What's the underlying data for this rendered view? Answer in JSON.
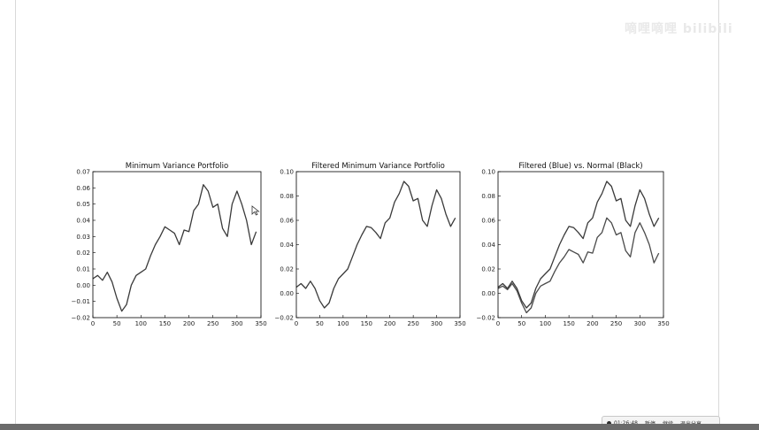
{
  "watermark": "嘀哩嘀哩 bilibili",
  "status_bar": {
    "time": "01:26:48",
    "buttons": [
      "暂停",
      "继续",
      "退出分享"
    ]
  },
  "colors": {
    "line_dark": "#3a3a3a",
    "line_mid": "#7a7a7a",
    "axis": "#000000",
    "background": "#ffffff"
  },
  "icons": [
    "cursor-arrow-icon",
    "record-dot-icon"
  ],
  "chart_data": [
    {
      "type": "line",
      "title": "Minimum Variance Portfolio",
      "xlabel": "",
      "ylabel": "",
      "xlim": [
        0,
        350
      ],
      "ylim": [
        -0.02,
        0.07
      ],
      "xticks": [
        "0",
        "50",
        "100",
        "150",
        "200",
        "250",
        "300",
        "350"
      ],
      "yticks": [
        "−0.02",
        "−0.01",
        "0.00",
        "0.01",
        "0.02",
        "0.03",
        "0.04",
        "0.05",
        "0.06",
        "0.07"
      ],
      "grid": false,
      "series": [
        {
          "color": "#3a3a3a",
          "x": [
            0,
            10,
            20,
            30,
            40,
            50,
            60,
            70,
            80,
            90,
            100,
            110,
            120,
            130,
            140,
            150,
            160,
            170,
            180,
            190,
            200,
            210,
            220,
            230,
            240,
            250,
            260,
            270,
            280,
            290,
            300,
            310,
            320,
            330,
            340
          ],
          "y": [
            0.004,
            0.006,
            0.003,
            0.008,
            0.002,
            -0.008,
            -0.016,
            -0.012,
            0.0,
            0.006,
            0.008,
            0.01,
            0.018,
            0.025,
            0.03,
            0.036,
            0.034,
            0.032,
            0.025,
            0.034,
            0.033,
            0.046,
            0.05,
            0.062,
            0.058,
            0.048,
            0.05,
            0.035,
            0.03,
            0.05,
            0.058,
            0.05,
            0.04,
            0.025,
            0.033
          ]
        }
      ]
    },
    {
      "type": "line",
      "title": "Filtered Minimum Variance Portfolio",
      "xlabel": "",
      "ylabel": "",
      "xlim": [
        0,
        350
      ],
      "ylim": [
        -0.02,
        0.1
      ],
      "xticks": [
        "0",
        "50",
        "100",
        "150",
        "200",
        "250",
        "300",
        "350"
      ],
      "yticks": [
        "−0.02",
        "0.00",
        "0.02",
        "0.04",
        "0.06",
        "0.08",
        "0.10"
      ],
      "grid": false,
      "series": [
        {
          "color": "#3a3a3a",
          "x": [
            0,
            10,
            20,
            30,
            40,
            50,
            60,
            70,
            80,
            90,
            100,
            110,
            120,
            130,
            140,
            150,
            160,
            170,
            180,
            190,
            200,
            210,
            220,
            230,
            240,
            250,
            260,
            270,
            280,
            290,
            300,
            310,
            320,
            330,
            340
          ],
          "y": [
            0.005,
            0.008,
            0.004,
            0.01,
            0.004,
            -0.006,
            -0.012,
            -0.008,
            0.004,
            0.012,
            0.016,
            0.02,
            0.03,
            0.04,
            0.048,
            0.055,
            0.054,
            0.05,
            0.045,
            0.058,
            0.062,
            0.075,
            0.082,
            0.092,
            0.088,
            0.076,
            0.078,
            0.06,
            0.055,
            0.072,
            0.085,
            0.078,
            0.065,
            0.055,
            0.062
          ]
        }
      ]
    },
    {
      "type": "line",
      "title": "Filtered (Blue) vs. Normal (Black)",
      "xlabel": "",
      "ylabel": "",
      "xlim": [
        0,
        350
      ],
      "ylim": [
        -0.02,
        0.1
      ],
      "xticks": [
        "0",
        "50",
        "100",
        "150",
        "200",
        "250",
        "300",
        "350"
      ],
      "yticks": [
        "−0.02",
        "0.00",
        "0.02",
        "0.04",
        "0.06",
        "0.08",
        "0.10"
      ],
      "grid": false,
      "series": [
        {
          "color": "#3a3a3a",
          "x": [
            0,
            10,
            20,
            30,
            40,
            50,
            60,
            70,
            80,
            90,
            100,
            110,
            120,
            130,
            140,
            150,
            160,
            170,
            180,
            190,
            200,
            210,
            220,
            230,
            240,
            250,
            260,
            270,
            280,
            290,
            300,
            310,
            320,
            330,
            340
          ],
          "y": [
            0.005,
            0.008,
            0.004,
            0.01,
            0.004,
            -0.006,
            -0.012,
            -0.008,
            0.004,
            0.012,
            0.016,
            0.02,
            0.03,
            0.04,
            0.048,
            0.055,
            0.054,
            0.05,
            0.045,
            0.058,
            0.062,
            0.075,
            0.082,
            0.092,
            0.088,
            0.076,
            0.078,
            0.06,
            0.055,
            0.072,
            0.085,
            0.078,
            0.065,
            0.055,
            0.062
          ]
        },
        {
          "color": "#4a4a4a",
          "x": [
            0,
            10,
            20,
            30,
            40,
            50,
            60,
            70,
            80,
            90,
            100,
            110,
            120,
            130,
            140,
            150,
            160,
            170,
            180,
            190,
            200,
            210,
            220,
            230,
            240,
            250,
            260,
            270,
            280,
            290,
            300,
            310,
            320,
            330,
            340
          ],
          "y": [
            0.004,
            0.006,
            0.003,
            0.008,
            0.002,
            -0.008,
            -0.016,
            -0.012,
            0.0,
            0.006,
            0.008,
            0.01,
            0.018,
            0.025,
            0.03,
            0.036,
            0.034,
            0.032,
            0.025,
            0.034,
            0.033,
            0.046,
            0.05,
            0.062,
            0.058,
            0.048,
            0.05,
            0.035,
            0.03,
            0.05,
            0.058,
            0.05,
            0.04,
            0.025,
            0.033
          ]
        }
      ]
    }
  ]
}
